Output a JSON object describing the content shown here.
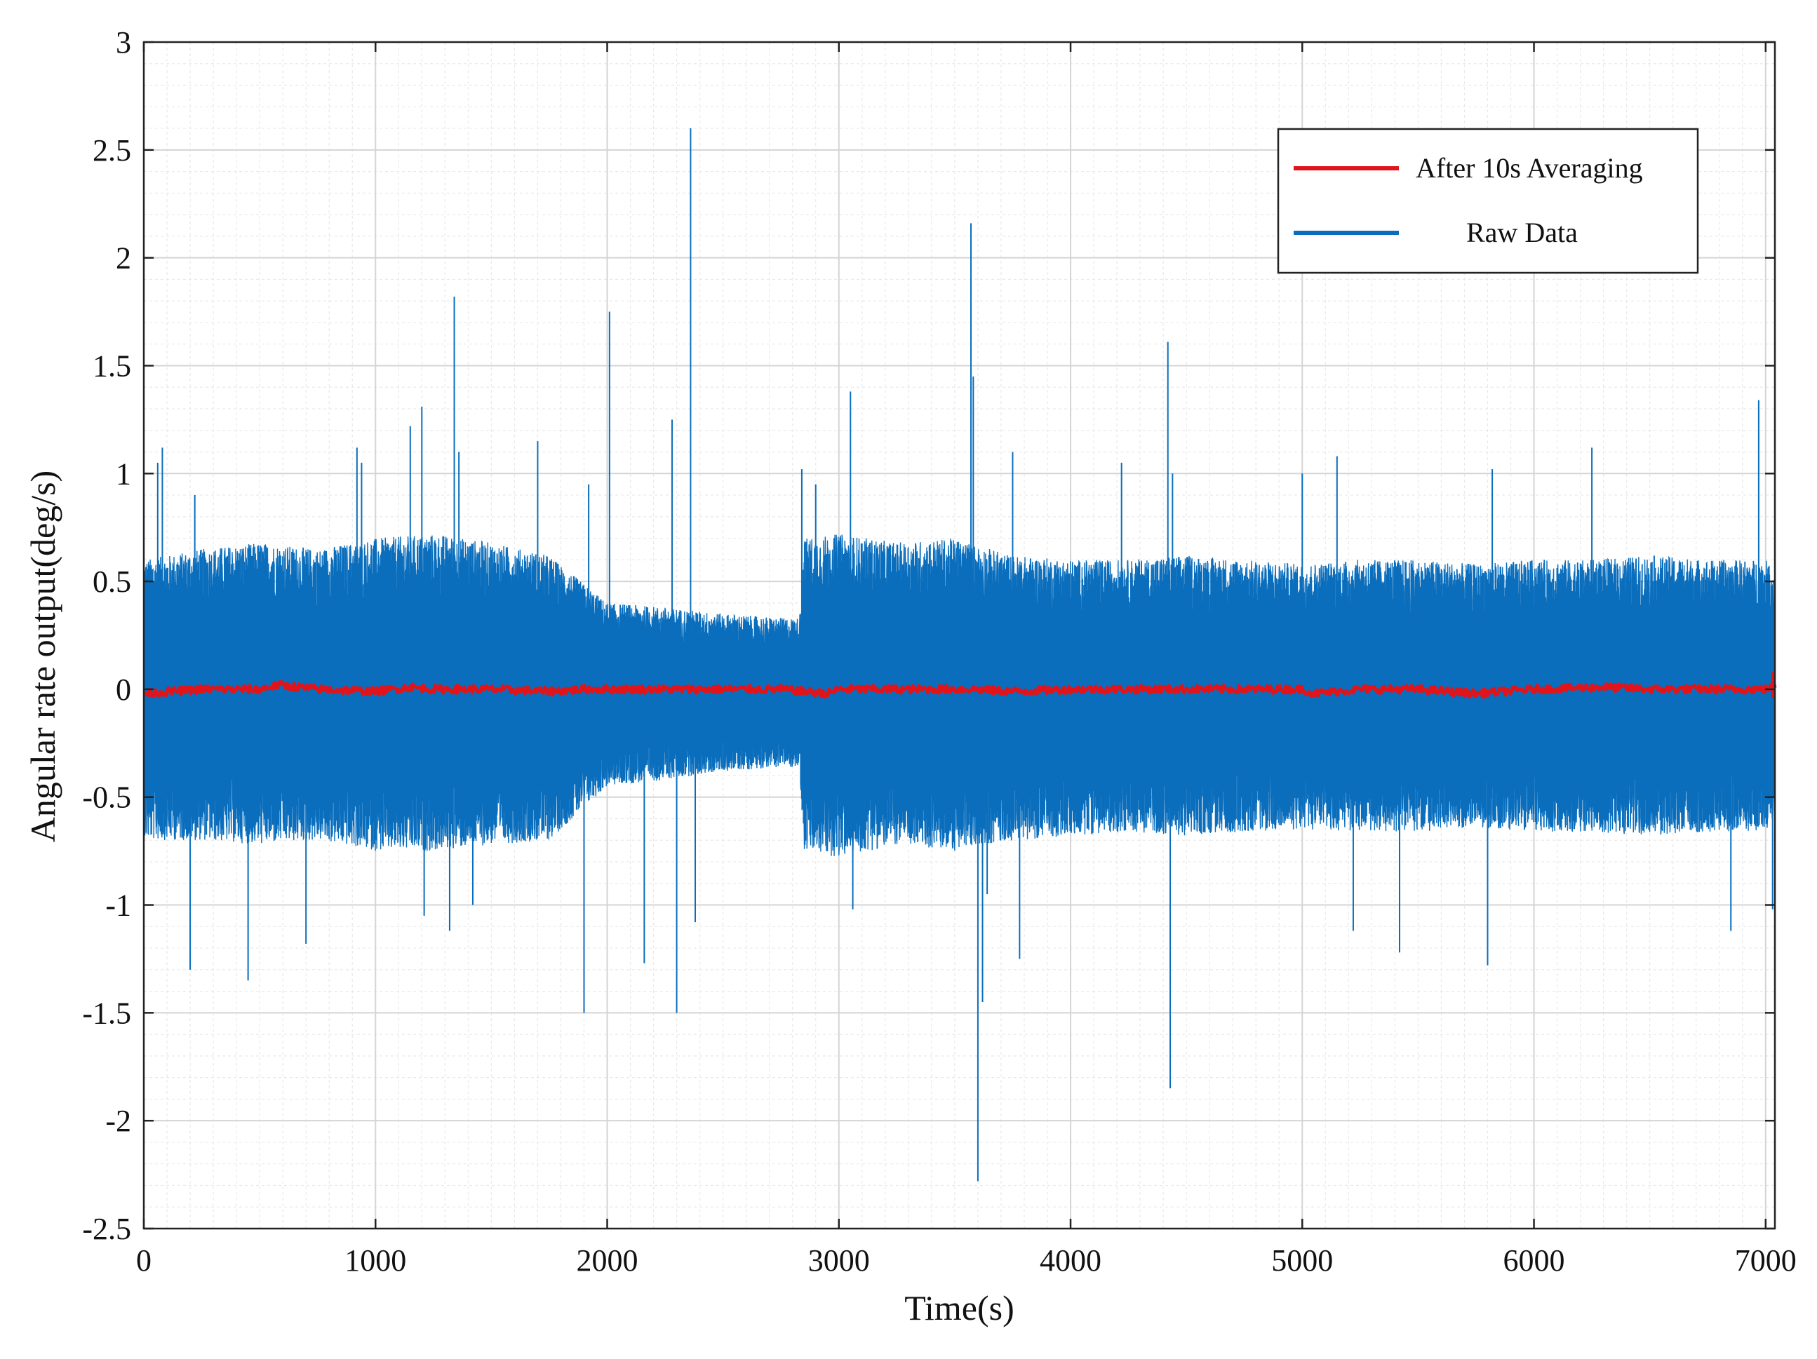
{
  "chart_data": {
    "type": "line",
    "title": "",
    "xlabel": "Time(s)",
    "ylabel": "Angular rate output(deg/s)",
    "xlim": [
      0,
      7040
    ],
    "ylim": [
      -2.5,
      3
    ],
    "x_ticks": [
      0,
      1000,
      2000,
      3000,
      4000,
      5000,
      6000,
      7000
    ],
    "x_tick_labels": [
      "0",
      "1000",
      "2000",
      "3000",
      "4000",
      "5000",
      "6000",
      "7000"
    ],
    "y_ticks": [
      -2.5,
      -2,
      -1.5,
      -1,
      -0.5,
      0,
      0.5,
      1,
      1.5,
      2,
      2.5,
      3
    ],
    "y_tick_labels": [
      "-2.5",
      "-2",
      "-1.5",
      "-1",
      "-0.5",
      "0",
      "0.5",
      "1",
      "1.5",
      "2",
      "2.5",
      "3"
    ],
    "grid": true,
    "minor_grid": true,
    "legend_position": "top-right",
    "series": [
      {
        "name": "After 10s Averaging",
        "color": "#e0141b",
        "x": [
          0,
          250,
          500,
          580,
          750,
          1000,
          1150,
          1250,
          1500,
          1750,
          1900,
          2000,
          2250,
          2500,
          2750,
          2950,
          3000,
          3250,
          3500,
          3580,
          3750,
          4000,
          4250,
          4500,
          4750,
          5000,
          5050,
          5250,
          5500,
          5750,
          6000,
          6300,
          6500,
          6750,
          7000,
          7040
        ],
        "values": [
          -0.02,
          0.0,
          0.0,
          0.02,
          0.0,
          -0.01,
          0.01,
          0.0,
          0.0,
          -0.01,
          0.0,
          0.0,
          0.0,
          0.0,
          0.0,
          -0.02,
          0.0,
          0.0,
          0.0,
          0.0,
          -0.01,
          0.0,
          0.0,
          0.0,
          0.0,
          0.0,
          -0.02,
          0.0,
          0.0,
          -0.02,
          0.0,
          0.01,
          0.0,
          0.0,
          0.0,
          0.02
        ]
      },
      {
        "name": "Raw Data",
        "color": "#0a6ebd",
        "envelope_x": [
          0,
          250,
          500,
          750,
          1000,
          1250,
          1500,
          1750,
          2000,
          2250,
          2500,
          2750,
          2830,
          2850,
          3000,
          3250,
          3500,
          3750,
          4000,
          4250,
          4500,
          4750,
          5000,
          5250,
          5500,
          5750,
          6000,
          6250,
          6500,
          6750,
          7000,
          7040
        ],
        "envelope_upper": [
          0.6,
          0.65,
          0.68,
          0.65,
          0.7,
          0.72,
          0.68,
          0.62,
          0.4,
          0.38,
          0.35,
          0.33,
          0.33,
          0.7,
          0.72,
          0.68,
          0.7,
          0.62,
          0.6,
          0.6,
          0.62,
          0.6,
          0.58,
          0.6,
          0.6,
          0.58,
          0.6,
          0.6,
          0.62,
          0.6,
          0.6,
          0.55
        ],
        "envelope_lower": [
          -0.7,
          -0.7,
          -0.72,
          -0.7,
          -0.75,
          -0.75,
          -0.72,
          -0.7,
          -0.45,
          -0.42,
          -0.38,
          -0.36,
          -0.36,
          -0.75,
          -0.78,
          -0.72,
          -0.75,
          -0.7,
          -0.68,
          -0.66,
          -0.68,
          -0.66,
          -0.65,
          -0.66,
          -0.66,
          -0.64,
          -0.66,
          -0.66,
          -0.68,
          -0.66,
          -0.66,
          -0.6
        ],
        "spikes_x": [
          60,
          80,
          200,
          220,
          450,
          700,
          920,
          940,
          1150,
          1200,
          1210,
          1320,
          1340,
          1360,
          1420,
          1700,
          1900,
          1920,
          2010,
          2160,
          2280,
          2300,
          2360,
          2380,
          2840,
          2900,
          3050,
          3060,
          3570,
          3580,
          3600,
          3620,
          3640,
          3750,
          3780,
          4220,
          4420,
          4430,
          4440,
          5000,
          5150,
          5220,
          5420,
          5800,
          5820,
          6250,
          6850,
          6970,
          7030
        ],
        "spikes_y": [
          1.05,
          1.12,
          -1.3,
          0.9,
          -1.35,
          -1.18,
          1.12,
          1.05,
          1.22,
          1.31,
          -1.05,
          -1.12,
          1.82,
          1.1,
          -1.0,
          1.15,
          -1.5,
          0.95,
          1.75,
          -1.27,
          1.25,
          -1.5,
          2.6,
          -1.08,
          1.02,
          0.95,
          1.38,
          -1.02,
          2.16,
          1.45,
          -2.28,
          -1.45,
          -0.95,
          1.1,
          -1.25,
          1.05,
          1.61,
          -1.85,
          1.0,
          1.0,
          1.08,
          -1.12,
          -1.22,
          -1.28,
          1.02,
          1.12,
          -1.12,
          1.34,
          -1.02
        ]
      }
    ]
  }
}
